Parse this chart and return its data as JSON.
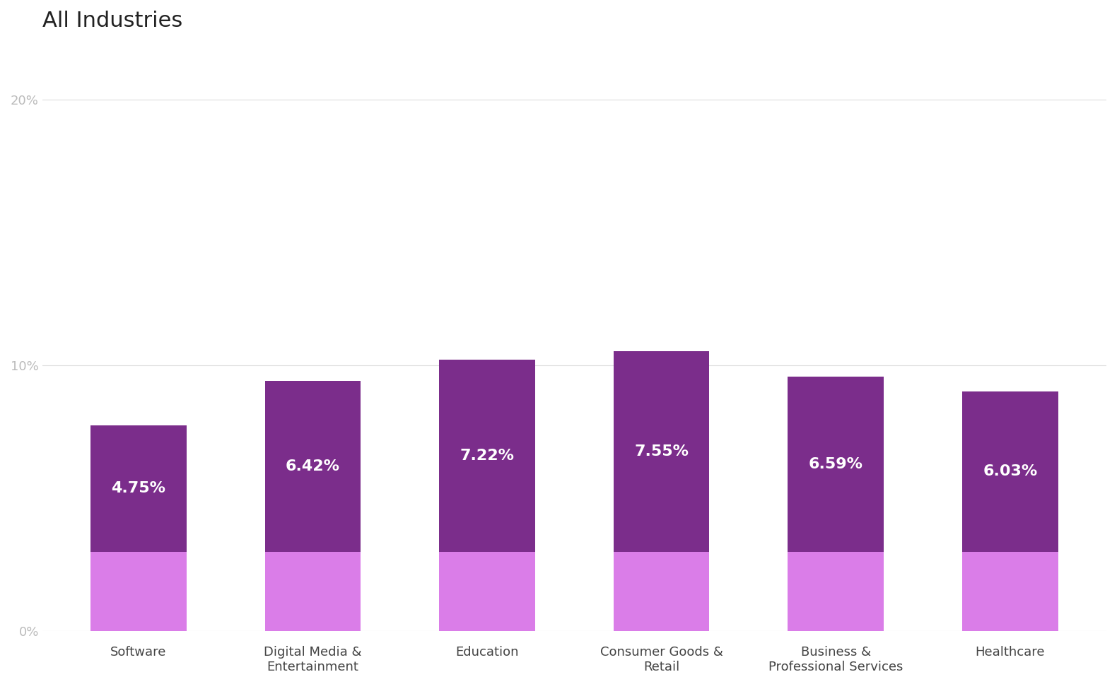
{
  "title": "All Industries",
  "categories": [
    "Software",
    "Digital Media &\nEntertainment",
    "Education",
    "Consumer Goods &\nRetail",
    "Business &\nProfessional Services",
    "Healthcare"
  ],
  "values": [
    4.75,
    6.42,
    7.22,
    7.55,
    6.59,
    6.03
  ],
  "bottom_values": [
    3.0,
    3.0,
    3.0,
    3.0,
    3.0,
    3.0
  ],
  "labels": [
    "4.75%",
    "6.42%",
    "7.22%",
    "7.55%",
    "6.59%",
    "6.03%"
  ],
  "bar_color_dark": "#7B2D8B",
  "bar_color_light": "#DA7DE8",
  "background_color": "#ffffff",
  "title_fontsize": 22,
  "label_fontsize": 16,
  "tick_fontsize": 13,
  "xlabel_fontsize": 13,
  "ylim": [
    0,
    22
  ],
  "yticks": [
    0,
    10,
    20
  ],
  "ytick_labels": [
    "0%",
    "10%",
    "20%"
  ],
  "bar_width": 0.55
}
